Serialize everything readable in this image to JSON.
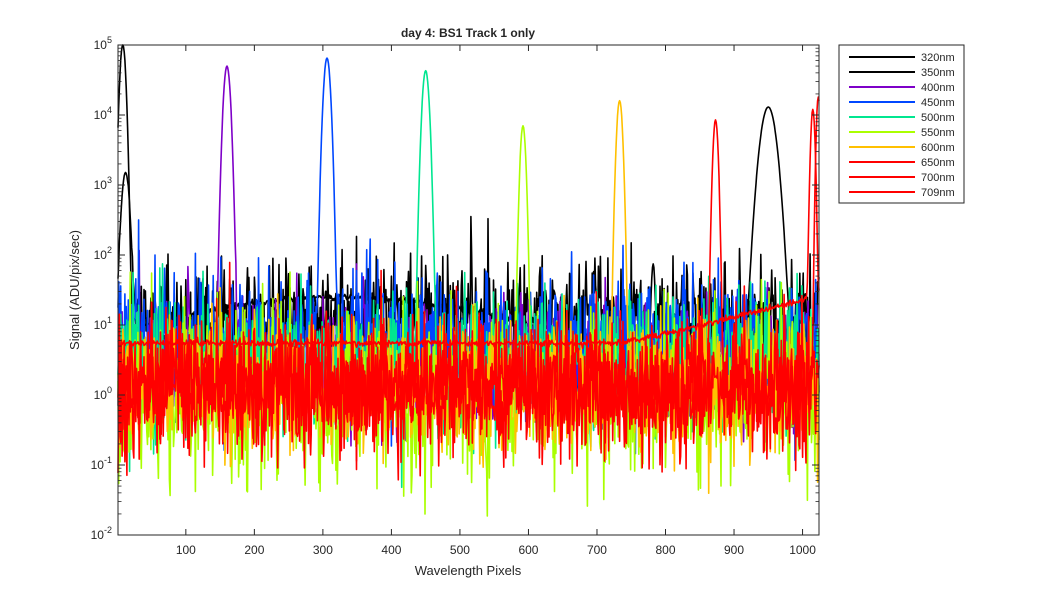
{
  "chart_data": {
    "type": "line",
    "title": "day 4: BS1   Track 1 only",
    "xlabel": "Wavelength Pixels",
    "ylabel": "Signal (ADU/pix/sec)",
    "xlim": [
      1,
      1024
    ],
    "ylim": [
      0.01,
      100000
    ],
    "yscale": "log",
    "x_ticks": [
      100,
      200,
      300,
      400,
      500,
      600,
      700,
      800,
      900,
      1000
    ],
    "x_tick_labels": [
      "100",
      "200",
      "300",
      "400",
      "500",
      "600",
      "700",
      "800",
      "900",
      "1000"
    ],
    "y_ticks": [
      0.01,
      0.1,
      1,
      10,
      100,
      1000,
      10000,
      100000
    ],
    "y_tick_labels": [
      {
        "base": "10",
        "exp": "-2"
      },
      {
        "base": "10",
        "exp": "-1"
      },
      {
        "base": "10",
        "exp": "0"
      },
      {
        "base": "10",
        "exp": "1"
      },
      {
        "base": "10",
        "exp": "2"
      },
      {
        "base": "10",
        "exp": "3"
      },
      {
        "base": "10",
        "exp": "4"
      },
      {
        "base": "10",
        "exp": "5"
      }
    ],
    "legend_position": "outside-top-right",
    "series": [
      {
        "name": "320nm",
        "color": "#000000",
        "peak_pixel": 8,
        "peak_value": 100000,
        "peak_width": 3,
        "baseline_kind": "broad-hump",
        "baseline_level": 3.5,
        "hump_center": 330,
        "hump_value": 25,
        "noise": 0.06,
        "extra_peaks": [
          {
            "pixel": 950,
            "value": 13000,
            "width": 8
          },
          {
            "pixel": 782,
            "value": 70,
            "width": 2
          }
        ]
      },
      {
        "name": "350nm",
        "color": "#000000",
        "peak_pixel": 12,
        "peak_value": 1500,
        "peak_width": 4,
        "baseline_kind": "noisy",
        "baseline_level": 12,
        "noise": 0.9
      },
      {
        "name": "400nm",
        "color": "#7e00c8",
        "peak_pixel": 160,
        "peak_value": 50000,
        "peak_width": 3.5,
        "baseline_kind": "noisy",
        "baseline_level": 3,
        "noise": 1.1
      },
      {
        "name": "450nm",
        "color": "#0047ff",
        "peak_pixel": 306,
        "peak_value": 65000,
        "peak_width": 3.5,
        "baseline_kind": "noisy",
        "baseline_level": 5,
        "noise": 1.1
      },
      {
        "name": "500nm",
        "color": "#00e690",
        "peak_pixel": 450,
        "peak_value": 43000,
        "peak_width": 3.5,
        "baseline_kind": "noisy",
        "baseline_level": 3,
        "noise": 1.1
      },
      {
        "name": "550nm",
        "color": "#aaff00",
        "peak_pixel": 592,
        "peak_value": 7000,
        "peak_width": 2.8,
        "baseline_kind": "noisy",
        "baseline_level": 1,
        "noise": 1.4
      },
      {
        "name": "600nm",
        "color": "#ffc000",
        "peak_pixel": 733,
        "peak_value": 16000,
        "peak_width": 3,
        "baseline_kind": "noisy",
        "baseline_level": 1.2,
        "noise": 1.1
      },
      {
        "name": "650nm",
        "color": "#ff0000",
        "peak_pixel": 873,
        "peak_value": 8500,
        "peak_width": 2.6,
        "baseline_kind": "noisy",
        "baseline_level": 1.3,
        "noise": 1.1
      },
      {
        "name": "700nm",
        "color": "#ff0000",
        "peak_pixel": 1015,
        "peak_value": 12000,
        "peak_width": 2.2,
        "baseline_kind": "smooth-rise",
        "baseline_level": 5.5,
        "rise_value": 25,
        "noise": 0.05
      },
      {
        "name": "709nm",
        "color": "#ff0000",
        "peak_pixel": 1023,
        "peak_value": 18000,
        "peak_width": 2,
        "baseline_kind": "noisy",
        "baseline_level": 1.2,
        "noise": 1.0
      }
    ]
  }
}
